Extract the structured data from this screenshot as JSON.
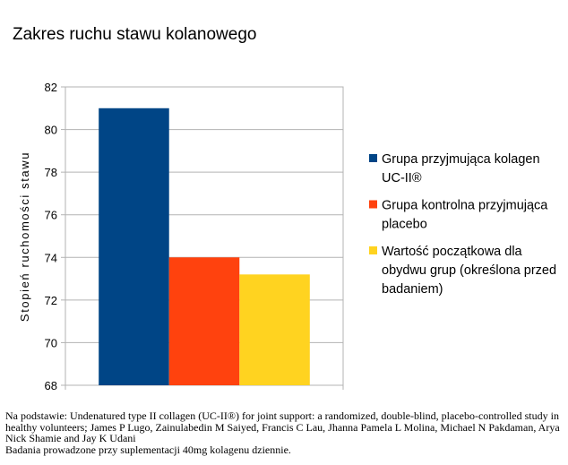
{
  "chart_data": {
    "type": "bar",
    "title": "Zakres ruchu stawu kolanowego",
    "ylabel": "Stopień ruchomości stawu",
    "xlabel": "",
    "ylim": [
      68,
      82
    ],
    "yticks": [
      68,
      70,
      72,
      74,
      76,
      78,
      80,
      82
    ],
    "grid": true,
    "legend_position": "right",
    "series": [
      {
        "name": "Grupa przyjmująca kolagen UC-II®",
        "value": 81,
        "color": "#004586"
      },
      {
        "name": "Grupa kontrolna przyjmująca placebo",
        "value": 74,
        "color": "#ff420e"
      },
      {
        "name": "Wartość początkowa dla obydwu grup (określona przed badaniem)",
        "value": 73.2,
        "color": "#ffd320"
      }
    ]
  },
  "footnote": {
    "source": "Na podstawie: Undenatured type II collagen (UC-II®) for joint support: a randomized, double-blind, placebo-controlled study in healthy volunteers; James P Lugo, Zainulabedin M Saiyed, Francis C Lau, Jhanna Pamela L Molina, Michael N Pakdaman, Arya Nick Shamie and Jay K Udani",
    "note": "Badania prowadzone przy suplementacji 40mg kolagenu dziennie."
  }
}
